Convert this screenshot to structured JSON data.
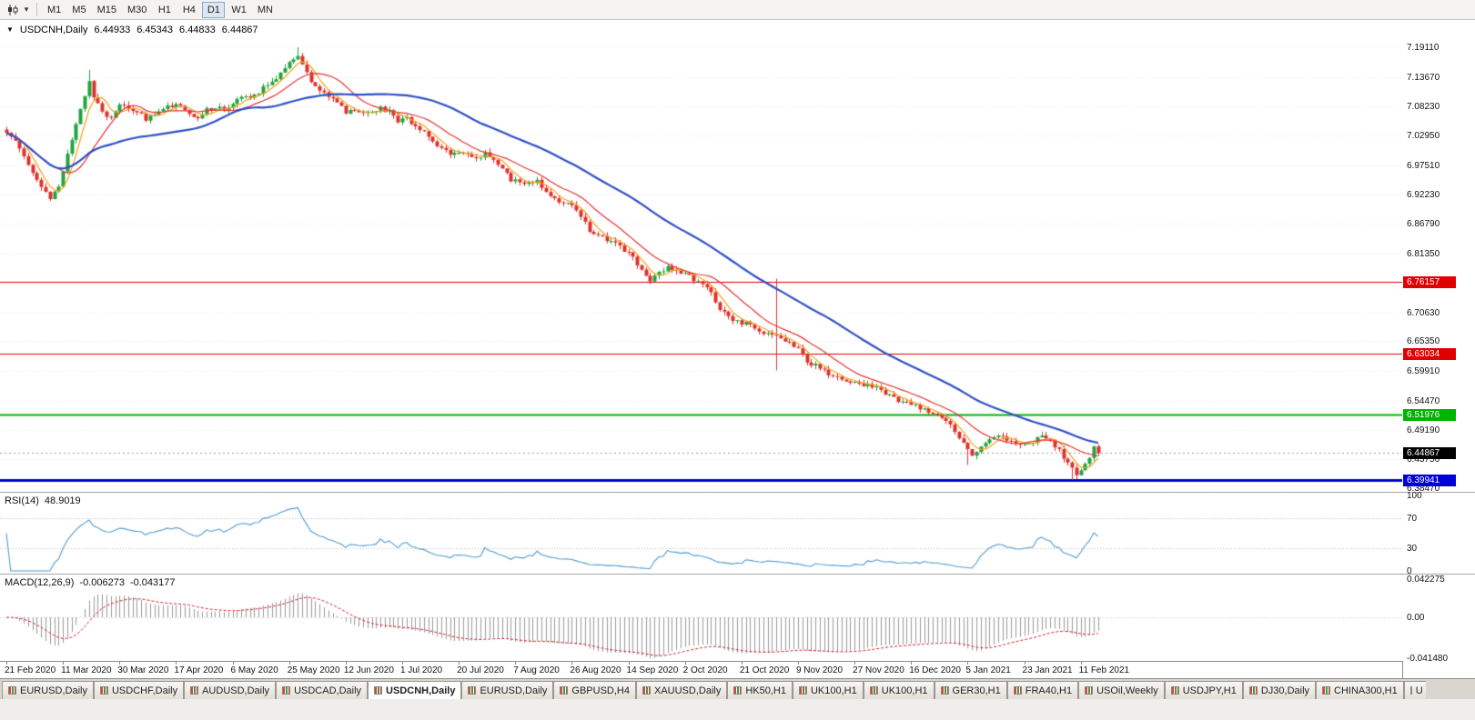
{
  "toolbar": {
    "timeframes": [
      {
        "label": "M1",
        "active": false
      },
      {
        "label": "M5",
        "active": false
      },
      {
        "label": "M15",
        "active": false
      },
      {
        "label": "M30",
        "active": false
      },
      {
        "label": "H1",
        "active": false
      },
      {
        "label": "H4",
        "active": false
      },
      {
        "label": "D1",
        "active": true
      },
      {
        "label": "W1",
        "active": false
      },
      {
        "label": "MN",
        "active": false
      }
    ],
    "caret": "▾"
  },
  "chart_title": {
    "menu_icon": "▼",
    "symbol": "USDCNH,Daily",
    "open": "6.44933",
    "high": "6.45343",
    "low": "6.44833",
    "close": "6.44867"
  },
  "chart_data": {
    "type": "candlestick",
    "title": "USDCNH,Daily",
    "ohlc_current": {
      "open": 6.44933,
      "high": 6.45343,
      "low": 6.44833,
      "close": 6.44867
    },
    "ylim": [
      6.378,
      7.241
    ],
    "candle_count": 252,
    "y_ticks": [
      {
        "label": "7.19110",
        "value": 7.1911
      },
      {
        "label": "7.13670",
        "value": 7.1367
      },
      {
        "label": "7.08230",
        "value": 7.0823
      },
      {
        "label": "7.02950",
        "value": 7.0295
      },
      {
        "label": "6.97510",
        "value": 6.9751
      },
      {
        "label": "6.92230",
        "value": 6.9223
      },
      {
        "label": "6.86790",
        "value": 6.8679
      },
      {
        "label": "6.81350",
        "value": 6.8135
      },
      {
        "label": "6.70630",
        "value": 6.7063
      },
      {
        "label": "6.65350",
        "value": 6.6535
      },
      {
        "label": "6.59910",
        "value": 6.5991
      },
      {
        "label": "6.54470",
        "value": 6.5447
      },
      {
        "label": "6.49190",
        "value": 6.4919
      },
      {
        "label": "6.43750",
        "value": 6.4375
      },
      {
        "label": "6.38470",
        "value": 6.3847
      }
    ],
    "levels": [
      {
        "label": "6.76157",
        "value": 6.76157,
        "color": "#e00000",
        "text_color": "#ffffff",
        "line_width": 1.2
      },
      {
        "label": "6.63034",
        "value": 6.63034,
        "color": "#e00000",
        "text_color": "#ffffff",
        "line_width": 1.2
      },
      {
        "label": "6.51976",
        "value": 6.51976,
        "color": "#00b400",
        "text_color": "#ffffff",
        "line_width": 2
      },
      {
        "label": "6.39941",
        "value": 6.39941,
        "color": "#0000d8",
        "text_color": "#ffffff",
        "line_width": 3
      }
    ],
    "current_price": {
      "label": "6.44867",
      "value": 6.44867,
      "bg": "#000000",
      "text_color": "#ffffff"
    },
    "x_labels": [
      {
        "label": "21 Feb 2020",
        "index": 0
      },
      {
        "label": "11 Mar 2020",
        "index": 13
      },
      {
        "label": "30 Mar 2020",
        "index": 26
      },
      {
        "label": "17 Apr 2020",
        "index": 39
      },
      {
        "label": "6 May 2020",
        "index": 52
      },
      {
        "label": "25 May 2020",
        "index": 65
      },
      {
        "label": "12 Jun 2020",
        "index": 78
      },
      {
        "label": "1 Jul 2020",
        "index": 91
      },
      {
        "label": "20 Jul 2020",
        "index": 104
      },
      {
        "label": "7 Aug 2020",
        "index": 117
      },
      {
        "label": "26 Aug 2020",
        "index": 130
      },
      {
        "label": "14 Sep 2020",
        "index": 143
      },
      {
        "label": "2 Oct 2020",
        "index": 156
      },
      {
        "label": "21 Oct 2020",
        "index": 169
      },
      {
        "label": "9 Nov 2020",
        "index": 182
      },
      {
        "label": "27 Nov 2020",
        "index": 195
      },
      {
        "label": "16 Dec 2020",
        "index": 208
      },
      {
        "label": "5 Jan 2021",
        "index": 221
      },
      {
        "label": "23 Jan 2021",
        "index": 234
      },
      {
        "label": "11 Feb 2021",
        "index": 247
      }
    ],
    "close_anchors": [
      [
        0,
        7.034
      ],
      [
        2,
        7.024
      ],
      [
        4,
        6.996
      ],
      [
        6,
        6.965
      ],
      [
        8,
        6.935
      ],
      [
        10,
        6.912
      ],
      [
        12,
        6.938
      ],
      [
        14,
        6.996
      ],
      [
        16,
        7.05
      ],
      [
        18,
        7.105
      ],
      [
        19,
        7.128
      ],
      [
        20,
        7.1
      ],
      [
        22,
        7.075
      ],
      [
        24,
        7.06
      ],
      [
        26,
        7.09
      ],
      [
        28,
        7.083
      ],
      [
        30,
        7.074
      ],
      [
        32,
        7.058
      ],
      [
        34,
        7.07
      ],
      [
        36,
        7.08
      ],
      [
        38,
        7.086
      ],
      [
        40,
        7.088
      ],
      [
        42,
        7.07
      ],
      [
        44,
        7.064
      ],
      [
        46,
        7.076
      ],
      [
        48,
        7.082
      ],
      [
        50,
        7.078
      ],
      [
        52,
        7.09
      ],
      [
        54,
        7.096
      ],
      [
        56,
        7.102
      ],
      [
        58,
        7.11
      ],
      [
        60,
        7.125
      ],
      [
        62,
        7.136
      ],
      [
        64,
        7.15
      ],
      [
        66,
        7.17
      ],
      [
        67,
        7.176
      ],
      [
        68,
        7.158
      ],
      [
        70,
        7.126
      ],
      [
        72,
        7.11
      ],
      [
        74,
        7.1
      ],
      [
        76,
        7.09
      ],
      [
        78,
        7.072
      ],
      [
        80,
        7.078
      ],
      [
        82,
        7.07
      ],
      [
        84,
        7.076
      ],
      [
        86,
        7.08
      ],
      [
        88,
        7.072
      ],
      [
        90,
        7.055
      ],
      [
        92,
        7.06
      ],
      [
        94,
        7.048
      ],
      [
        96,
        7.038
      ],
      [
        98,
        7.02
      ],
      [
        100,
        7.006
      ],
      [
        102,
        6.996
      ],
      [
        104,
        6.994
      ],
      [
        106,
        7.0
      ],
      [
        108,
        6.988
      ],
      [
        110,
        6.996
      ],
      [
        112,
        6.982
      ],
      [
        114,
        6.966
      ],
      [
        116,
        6.95
      ],
      [
        118,
        6.942
      ],
      [
        120,
        6.948
      ],
      [
        122,
        6.946
      ],
      [
        124,
        6.928
      ],
      [
        126,
        6.916
      ],
      [
        128,
        6.906
      ],
      [
        130,
        6.898
      ],
      [
        132,
        6.88
      ],
      [
        134,
        6.858
      ],
      [
        136,
        6.846
      ],
      [
        138,
        6.84
      ],
      [
        140,
        6.833
      ],
      [
        142,
        6.82
      ],
      [
        144,
        6.806
      ],
      [
        146,
        6.78
      ],
      [
        148,
        6.766
      ],
      [
        150,
        6.778
      ],
      [
        152,
        6.788
      ],
      [
        154,
        6.782
      ],
      [
        156,
        6.776
      ],
      [
        158,
        6.766
      ],
      [
        160,
        6.756
      ],
      [
        162,
        6.742
      ],
      [
        164,
        6.714
      ],
      [
        166,
        6.698
      ],
      [
        168,
        6.69
      ],
      [
        170,
        6.686
      ],
      [
        172,
        6.676
      ],
      [
        174,
        6.67
      ],
      [
        176,
        6.662
      ],
      [
        178,
        6.658
      ],
      [
        180,
        6.652
      ],
      [
        182,
        6.64
      ],
      [
        184,
        6.618
      ],
      [
        186,
        6.608
      ],
      [
        188,
        6.598
      ],
      [
        190,
        6.59
      ],
      [
        192,
        6.584
      ],
      [
        194,
        6.58
      ],
      [
        196,
        6.577
      ],
      [
        198,
        6.571
      ],
      [
        200,
        6.567
      ],
      [
        202,
        6.557
      ],
      [
        204,
        6.549
      ],
      [
        206,
        6.544
      ],
      [
        208,
        6.539
      ],
      [
        210,
        6.533
      ],
      [
        212,
        6.527
      ],
      [
        214,
        6.519
      ],
      [
        216,
        6.511
      ],
      [
        218,
        6.489
      ],
      [
        220,
        6.468
      ],
      [
        222,
        6.448
      ],
      [
        224,
        6.458
      ],
      [
        226,
        6.47
      ],
      [
        228,
        6.477
      ],
      [
        230,
        6.475
      ],
      [
        232,
        6.469
      ],
      [
        234,
        6.467
      ],
      [
        236,
        6.471
      ],
      [
        238,
        6.477
      ],
      [
        240,
        6.469
      ],
      [
        242,
        6.457
      ],
      [
        244,
        6.428
      ],
      [
        246,
        6.408
      ],
      [
        247,
        6.414
      ],
      [
        248,
        6.428
      ],
      [
        249,
        6.444
      ],
      [
        250,
        6.459
      ],
      [
        251,
        6.449
      ]
    ],
    "wick_overrides": {
      "19": {
        "h": 7.15
      },
      "67": {
        "h": 7.191
      },
      "177": {
        "h": 6.768,
        "l": 6.6
      },
      "221": {
        "l": 6.427
      },
      "245": {
        "l": 6.3996
      },
      "246": {
        "l": 6.401
      }
    },
    "moving_averages": [
      {
        "period": 5,
        "color": "#efa21a",
        "width": 1.2
      },
      {
        "period": 13,
        "color": "#e23434",
        "width": 1.2
      },
      {
        "period": 40,
        "color": "#2d4fc4",
        "width": 2.2
      }
    ],
    "candle_colors": {
      "bull": "#23a33d",
      "bear": "#e0312c"
    },
    "rsi": {
      "title": "RSI(14)",
      "value": "48.9019",
      "period": 14,
      "color": "#4f9ad2",
      "guide_levels": [
        70,
        30
      ],
      "range": [
        0,
        100
      ],
      "axis": [
        {
          "label": "100",
          "value": 100
        },
        {
          "label": "70",
          "value": 70
        },
        {
          "label": "30",
          "value": 30
        },
        {
          "label": "0",
          "value": 0
        }
      ]
    },
    "macd": {
      "title": "MACD(12,26,9)",
      "main": "-0.006273",
      "signal": "-0.043177",
      "fast": 12,
      "slow": 26,
      "signal_period": 9,
      "hist_color": "#999999",
      "signal_color": "#d22222",
      "axis": [
        {
          "label": "0.042275",
          "value": 0.042275
        },
        {
          "label": "0.00",
          "value": 0
        },
        {
          "label": "-0.041480",
          "value": -0.04148
        }
      ]
    }
  },
  "tabs": [
    {
      "label": "EURUSD,Daily",
      "active": false
    },
    {
      "label": "USDCHF,Daily",
      "active": false
    },
    {
      "label": "AUDUSD,Daily",
      "active": false
    },
    {
      "label": "USDCAD,Daily",
      "active": false
    },
    {
      "label": "USDCNH,Daily",
      "active": true
    },
    {
      "label": "EURUSD,Daily",
      "active": false
    },
    {
      "label": "GBPUSD,H4",
      "active": false
    },
    {
      "label": "XAUUSD,Daily",
      "active": false
    },
    {
      "label": "HK50,H1",
      "active": false
    },
    {
      "label": "UK100,H1",
      "active": false
    },
    {
      "label": "UK100,H1",
      "active": false
    },
    {
      "label": "GER30,H1",
      "active": false
    },
    {
      "label": "FRA40,H1",
      "active": false
    },
    {
      "label": "USOil,Weekly",
      "active": false
    },
    {
      "label": "USDJPY,H1",
      "active": false
    },
    {
      "label": "DJ30,Daily",
      "active": false
    },
    {
      "label": "CHINA300,H1",
      "active": false
    },
    {
      "label": "U",
      "active": false
    }
  ]
}
